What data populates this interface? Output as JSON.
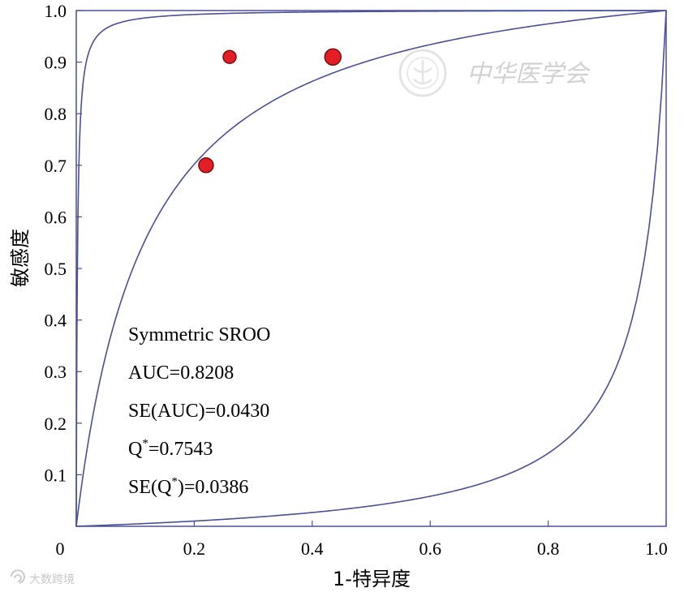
{
  "chart_data": {
    "type": "line",
    "xlabel": "1-特异度",
    "ylabel": "敏感度",
    "xlim": [
      0,
      1
    ],
    "ylim": [
      0,
      1
    ],
    "grid": false,
    "x_ticks": [
      "0",
      "0.2",
      "0.4",
      "0.6",
      "0.8",
      "1.0"
    ],
    "y_ticks": [
      "0.1",
      "0.2",
      "0.3",
      "0.4",
      "0.5",
      "0.6",
      "0.7",
      "0.8",
      "0.9",
      "1.0"
    ],
    "line_color": "#4a4f9a",
    "point_color": "#e31e24",
    "curves": {
      "sroc_auc": 0.8208,
      "upper_bound_auc": 0.99,
      "lower_bound_auc": 0.1
    },
    "points": [
      {
        "x": 0.22,
        "y": 0.7,
        "r": 9
      },
      {
        "x": 0.26,
        "y": 0.91,
        "r": 8
      },
      {
        "x": 0.435,
        "y": 0.91,
        "r": 10
      }
    ],
    "annotations": [
      {
        "base": "Symmetric SROO",
        "sup": ""
      },
      {
        "base": "AUC=0.8208",
        "sup": ""
      },
      {
        "base": "SE(AUC)=0.0430",
        "sup": ""
      },
      {
        "base": "Q",
        "sup": "*",
        "rest": "=0.7543"
      },
      {
        "base": "SE(Q",
        "sup": "*",
        "rest": ")=0.0386"
      }
    ]
  },
  "watermark": {
    "text": "中华医学会",
    "source": "大数跨境"
  }
}
